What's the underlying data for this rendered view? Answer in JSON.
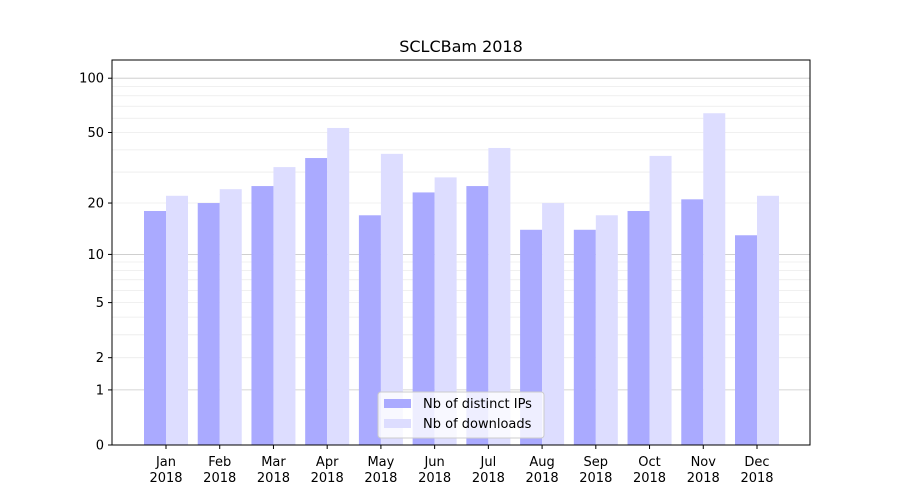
{
  "chart_data": {
    "type": "bar",
    "title": "SCLCBam 2018",
    "xlabel": "",
    "ylabel": "",
    "yscale": "symlog",
    "ylim": [
      0,
      120
    ],
    "yticks": [
      0,
      1,
      2,
      5,
      10,
      20,
      50,
      100
    ],
    "grid": true,
    "legend_position": "bottom-center",
    "categories": [
      "Jan\n2018",
      "Feb\n2018",
      "Mar\n2018",
      "Apr\n2018",
      "May\n2018",
      "Jun\n2018",
      "Jul\n2018",
      "Aug\n2018",
      "Sep\n2018",
      "Oct\n2018",
      "Nov\n2018",
      "Dec\n2018"
    ],
    "series": [
      {
        "name": "Nb of distinct IPs",
        "color": "#aaaaff",
        "values": [
          18,
          20,
          25,
          36,
          17,
          23,
          25,
          14,
          14,
          18,
          21,
          13
        ]
      },
      {
        "name": "Nb of downloads",
        "color": "#ddddff",
        "values": [
          22,
          24,
          32,
          53,
          38,
          28,
          41,
          20,
          17,
          37,
          64,
          22
        ]
      }
    ]
  }
}
